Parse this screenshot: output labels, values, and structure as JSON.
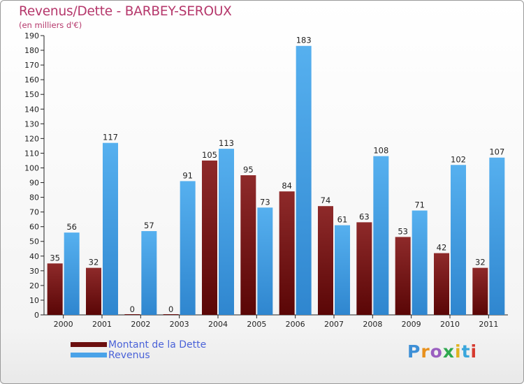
{
  "header": {
    "title": "Revenus/Dette - BARBEY-SEROUX",
    "subtitle": "(en milliers d'€)"
  },
  "chart_data": {
    "type": "bar",
    "title": "Revenus/Dette - BARBEY-SEROUX",
    "subtitle": "(en milliers d'€)",
    "xlabel": "",
    "ylabel": "",
    "ylim": [
      0,
      190
    ],
    "ytick_step": 10,
    "grid": false,
    "legend_position": "bottom-left",
    "categories": [
      "2000",
      "2001",
      "2002",
      "2003",
      "2004",
      "2005",
      "2006",
      "2007",
      "2008",
      "2009",
      "2010",
      "2011"
    ],
    "series": [
      {
        "name": "Montant de la Dette",
        "color": "#7d1f1f",
        "values": [
          35,
          32,
          0,
          0,
          105,
          95,
          84,
          74,
          63,
          53,
          42,
          32
        ]
      },
      {
        "name": "Revenus",
        "color": "#4aa3e8",
        "values": [
          56,
          117,
          57,
          91,
          113,
          73,
          183,
          61,
          108,
          71,
          102,
          107
        ]
      }
    ]
  },
  "legend": {
    "items": [
      {
        "label": "Montant de la Dette",
        "color": "#6b0f0f"
      },
      {
        "label": "Revenus",
        "color": "#4aa3e8"
      }
    ]
  },
  "logo": {
    "letters": [
      "P",
      "r",
      "o",
      "x",
      "i",
      "t",
      "i"
    ],
    "colors": [
      "#3d8fd6",
      "#e8901c",
      "#9a5fc0",
      "#2fa84f",
      "#e0b21e",
      "#3aa6dc",
      "#d63a2e"
    ]
  }
}
